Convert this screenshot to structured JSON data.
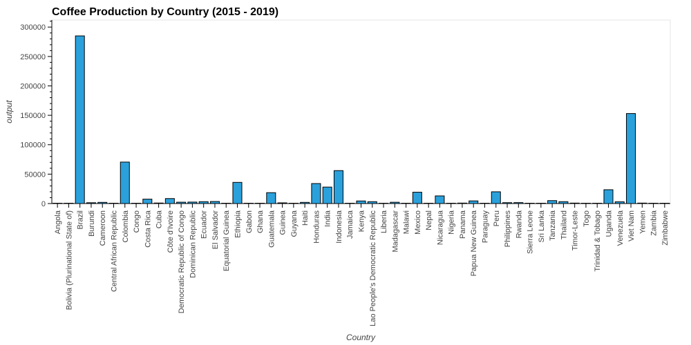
{
  "chart_data": {
    "type": "bar",
    "title": "Coffee Production by Country (2015 - 2019)",
    "xlabel": "Country",
    "ylabel": "output",
    "ylim": [
      0,
      312000
    ],
    "yticks": [
      0,
      50000,
      100000,
      150000,
      200000,
      250000,
      300000
    ],
    "bar_color": "#2ba1dc",
    "grid": false,
    "categories": [
      "Angola",
      "Bolivia (Plurinational State of)",
      "Brazil",
      "Burundi",
      "Cameroon",
      "Central African Republic",
      "Colombia",
      "Congo",
      "Costa Rica",
      "Cuba",
      "Côte d'Ivoire",
      "Democratic Republic of Congo",
      "Dominican Republic",
      "Ecuador",
      "El Salvador",
      "Equatorial Guinea",
      "Ethiopia",
      "Gabon",
      "Ghana",
      "Guatemala",
      "Guinea",
      "Guyana",
      "Haiti",
      "Honduras",
      "India",
      "Indonesia",
      "Jamaica",
      "Kenya",
      "Lao People's Democratic Republic",
      "Liberia",
      "Madagascar",
      "Malawi",
      "Mexico",
      "Nepal",
      "Nicaragua",
      "Nigeria",
      "Panama",
      "Papua New Guinea",
      "Paraguay",
      "Peru",
      "Philippines",
      "Rwanda",
      "Sierra Leone",
      "Sri Lanka",
      "Tanzania",
      "Thailand",
      "Timor-Leste",
      "Togo",
      "Trinidad & Tobago",
      "Uganda",
      "Venezuela",
      "Viet Nam",
      "Yemen",
      "Zambia",
      "Zimbabwe"
    ],
    "values": [
      200,
      600,
      285000,
      1400,
      2000,
      300,
      70500,
      100,
      7500,
      900,
      8500,
      2300,
      2500,
      3200,
      3500,
      100,
      36000,
      50,
      200,
      18500,
      1200,
      50,
      2000,
      34000,
      28000,
      56000,
      100,
      4400,
      3200,
      50,
      2200,
      200,
      19300,
      50,
      13000,
      100,
      800,
      4500,
      50,
      20000,
      1500,
      1600,
      200,
      300,
      5000,
      3200,
      800,
      200,
      50,
      23500,
      3000,
      153000,
      800,
      50,
      100
    ]
  }
}
